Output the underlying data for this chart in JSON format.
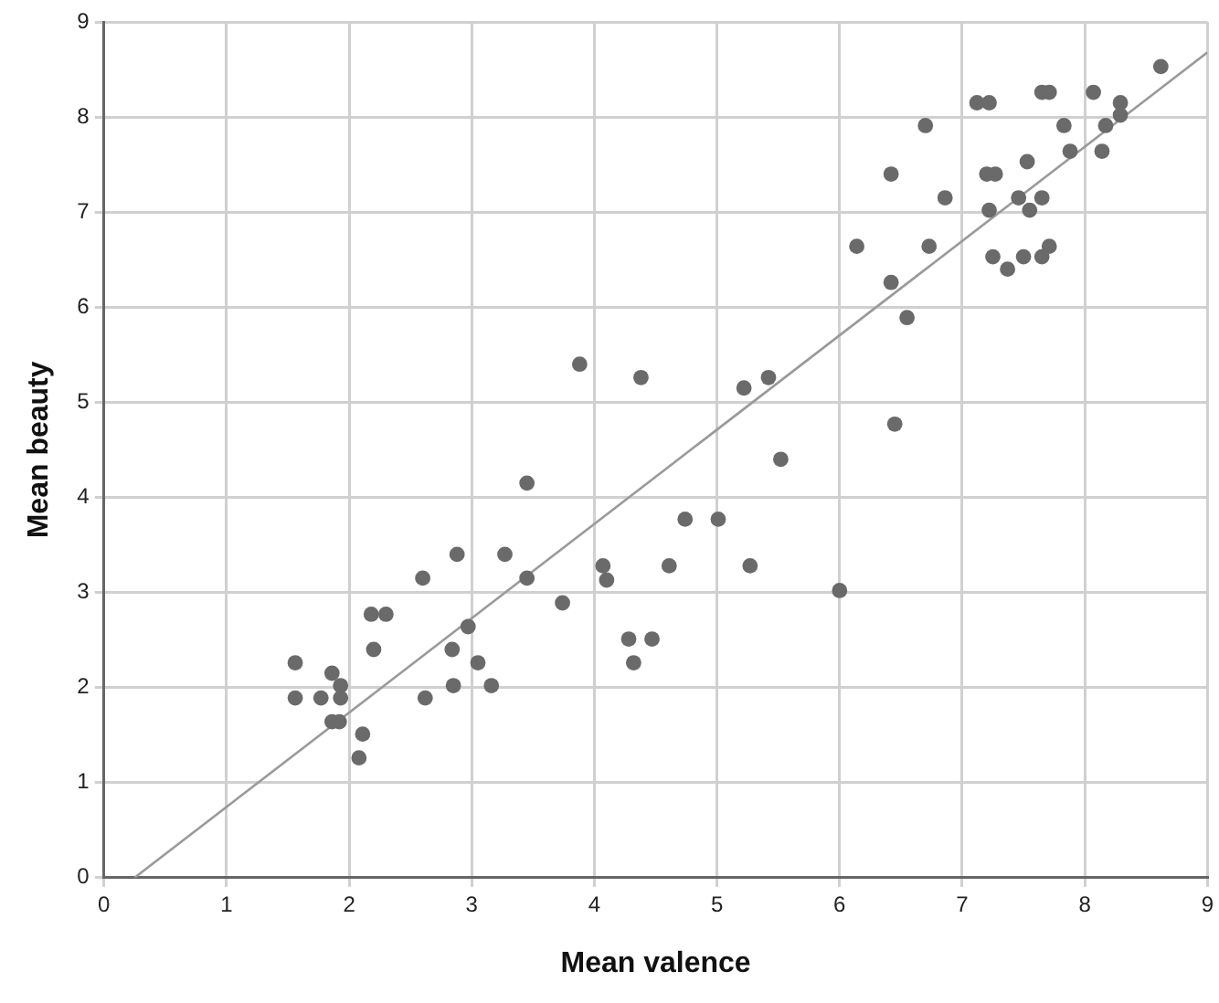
{
  "chart_data": {
    "type": "scatter",
    "xlabel": "Mean valence",
    "ylabel": "Mean beauty",
    "xlim": [
      0,
      9
    ],
    "xticks": [
      0,
      1,
      2,
      3,
      4,
      5,
      6,
      7,
      8,
      9
    ],
    "ylim": [
      0,
      9
    ],
    "yticks": [
      0,
      1,
      2,
      3,
      4,
      5,
      6,
      7,
      8,
      9
    ],
    "grid": true,
    "marker": "circle",
    "series": [
      {
        "color": "#6a6a6a",
        "x": [
          1.56,
          1.56,
          1.77,
          1.86,
          1.93,
          1.93,
          1.86,
          1.92,
          2.11,
          2.08,
          2.18,
          2.3,
          2.2,
          2.62,
          2.6,
          2.85,
          2.84,
          2.88,
          2.97,
          3.05,
          3.16,
          3.27,
          3.45,
          3.45,
          3.74,
          3.88,
          4.38,
          5.22,
          5.42,
          6.42,
          5.52,
          4.74,
          5.01,
          4.07,
          4.1,
          4.61,
          5.27,
          6.0,
          4.28,
          4.47,
          4.32,
          8.62,
          7.65,
          7.71,
          8.07,
          7.12,
          7.22,
          8.29,
          8.29,
          6.7,
          7.83,
          8.17,
          7.88,
          8.14,
          7.53,
          7.2,
          7.27,
          6.86,
          7.46,
          7.65,
          7.22,
          7.55,
          6.14,
          6.73,
          7.71,
          7.25,
          7.5,
          7.65,
          7.37,
          6.42,
          6.55,
          6.45
        ],
        "values": [
          2.26,
          1.89,
          1.89,
          2.15,
          2.02,
          1.89,
          1.64,
          1.64,
          1.51,
          1.26,
          2.77,
          2.77,
          2.4,
          1.89,
          3.15,
          2.02,
          2.4,
          3.4,
          2.64,
          2.26,
          2.02,
          3.4,
          4.15,
          3.15,
          2.89,
          5.4,
          5.26,
          5.15,
          5.26,
          7.4,
          4.4,
          3.77,
          3.77,
          3.28,
          3.13,
          3.28,
          3.28,
          3.02,
          2.51,
          2.51,
          2.26,
          8.53,
          8.26,
          8.26,
          8.26,
          8.15,
          8.15,
          8.15,
          8.02,
          7.91,
          7.91,
          7.91,
          7.64,
          7.64,
          7.53,
          7.4,
          7.4,
          7.15,
          7.15,
          7.15,
          7.02,
          7.02,
          6.64,
          6.64,
          6.64,
          6.53,
          6.53,
          6.53,
          6.4,
          6.26,
          5.89,
          4.77
        ]
      },
      {
        "type": "line",
        "color": "#9a9a9a",
        "x": [
          0.25,
          9
        ],
        "values": [
          0,
          8.68
        ],
        "marker": "none"
      }
    ]
  }
}
